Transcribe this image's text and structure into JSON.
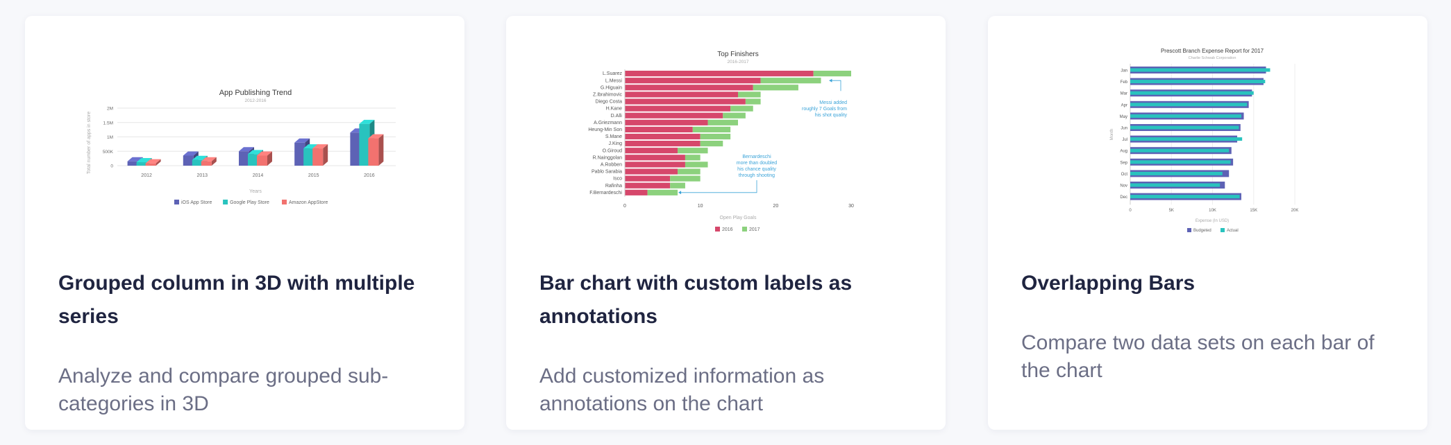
{
  "cards": [
    {
      "title": "Grouped column in 3D with multiple series",
      "description": "Analyze and compare grouped sub-categories in 3D"
    },
    {
      "title": "Bar chart with custom labels as annotations",
      "description": "Add customized information as annotations on the chart"
    },
    {
      "title": "Overlapping Bars",
      "description": "Compare two data sets on each bar of the chart"
    }
  ],
  "chart_data": [
    {
      "type": "bar",
      "title": "App Publishing Trend",
      "subtitle": "2012-2016",
      "xlabel": "Years",
      "ylabel": "Total number of apps in store",
      "categories": [
        "2012",
        "2013",
        "2014",
        "2015",
        "2016"
      ],
      "y_ticks": [
        "0",
        "500K",
        "1M",
        "1.5M",
        "2M"
      ],
      "ylim": [
        0,
        2000000
      ],
      "series": [
        {
          "name": "iOS App Store",
          "color": "#5d62b5",
          "values": [
            150000,
            350000,
            500000,
            800000,
            1150000
          ]
        },
        {
          "name": "Google Play Store",
          "color": "#29c3be",
          "values": [
            120000,
            200000,
            400000,
            600000,
            1450000
          ]
        },
        {
          "name": "Amazon AppStore",
          "color": "#f2726f",
          "values": [
            80000,
            150000,
            350000,
            600000,
            950000
          ]
        }
      ],
      "legend": "bottom",
      "grid": true
    },
    {
      "type": "bar",
      "orientation": "horizontal",
      "stacked": true,
      "title": "Top Finishers",
      "subtitle": "2016-2017",
      "xlabel": "Open Play Goals",
      "categories": [
        "L.Suarez",
        "L.Messi",
        "G.Higuain",
        "Z.Ibrahimovic",
        "Diego Costa",
        "H.Kane",
        "D.Alli",
        "A.Griezmann",
        "Heung-Min Son",
        "S.Mane",
        "J.King",
        "O.Giroud",
        "R.Nainggolan",
        "A.Robben",
        "Pablo Sarabia",
        "Isco",
        "Rafinha",
        "F.Bernardeschi"
      ],
      "x_ticks": [
        "0",
        "10",
        "20",
        "30"
      ],
      "xlim": [
        0,
        30
      ],
      "series": [
        {
          "name": "2016",
          "color": "#d6476b",
          "values": [
            25,
            18,
            17,
            15,
            16,
            14,
            13,
            11,
            9,
            10,
            10,
            7,
            8,
            8,
            7,
            6,
            6,
            3
          ]
        },
        {
          "name": "2017",
          "color": "#8cd17d",
          "values": [
            5,
            8,
            6,
            3,
            2,
            3,
            3,
            4,
            5,
            4,
            3,
            4,
            2,
            3,
            3,
            4,
            2,
            4
          ]
        }
      ],
      "annotations": [
        "Messi added roughly 7 Goals from his shot quality",
        "Bernardeschi more than doubled his chance quality through shooting"
      ],
      "legend": "bottom"
    },
    {
      "type": "bar",
      "orientation": "horizontal",
      "overlapping": true,
      "title": "Prescott Branch Expense Report for 2017",
      "subtitle": "Charlie Schwab Corporation",
      "xlabel": "Expense (In USD)",
      "ylabel": "Month",
      "categories": [
        "Jan",
        "Feb",
        "Mar",
        "Apr",
        "May",
        "Jun",
        "Jul",
        "Aug",
        "Sep",
        "Oct",
        "Nov",
        "Dec"
      ],
      "x_ticks": [
        "0",
        "5K",
        "10K",
        "15K",
        "20K"
      ],
      "xlim": [
        0,
        20000
      ],
      "series": [
        {
          "name": "Budgeted",
          "color": "#5d62b5",
          "values": [
            16500,
            16200,
            14800,
            14400,
            13800,
            13400,
            13000,
            12300,
            12500,
            12000,
            11500,
            13500
          ]
        },
        {
          "name": "Actual",
          "color": "#29c3be",
          "values": [
            17000,
            16400,
            15000,
            14200,
            13500,
            13200,
            13600,
            12000,
            12200,
            11200,
            10900,
            13300
          ]
        }
      ],
      "legend": "bottom"
    }
  ]
}
